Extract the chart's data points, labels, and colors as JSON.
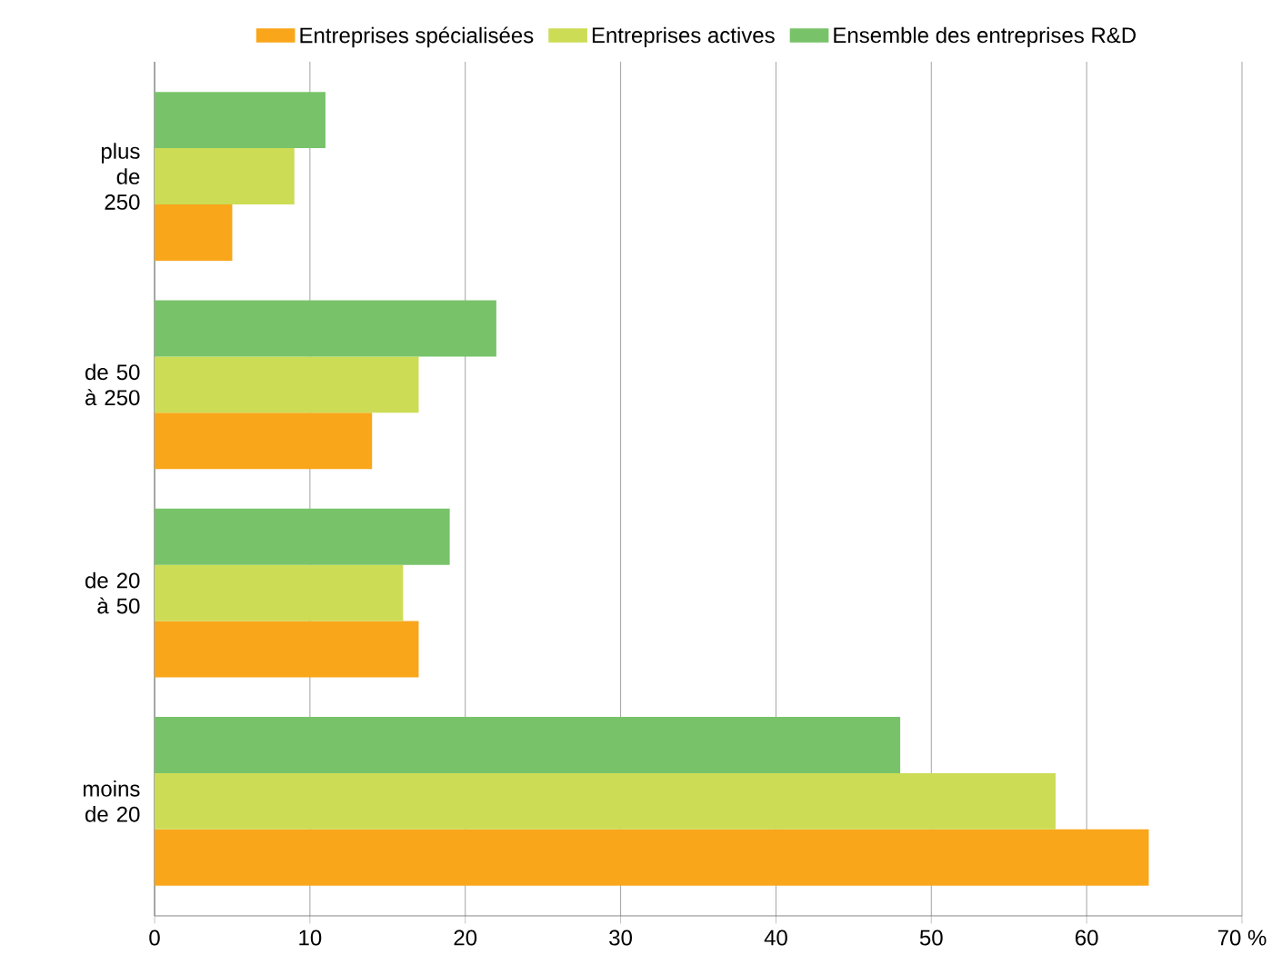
{
  "chart_data": {
    "type": "bar",
    "orientation": "horizontal",
    "categories": [
      "plus de 250",
      "de 50 à 250",
      "de 20 à 50",
      "moins de 20"
    ],
    "series": [
      {
        "name": "Entreprises spécialisées",
        "color": "#f9a61a",
        "values": [
          5,
          14,
          17,
          64
        ]
      },
      {
        "name": "Entreprises actives",
        "color": "#cddc55",
        "values": [
          9,
          17,
          16,
          58
        ]
      },
      {
        "name": "Ensemble des entreprises R&D",
        "color": "#78c36a",
        "values": [
          11,
          22,
          19,
          48
        ]
      }
    ],
    "xlim": [
      0,
      70
    ],
    "xticks": [
      0,
      10,
      20,
      30,
      40,
      50,
      60,
      {
        "value": 70,
        "label": "70 %"
      }
    ],
    "grid": "x",
    "legend": "top"
  }
}
